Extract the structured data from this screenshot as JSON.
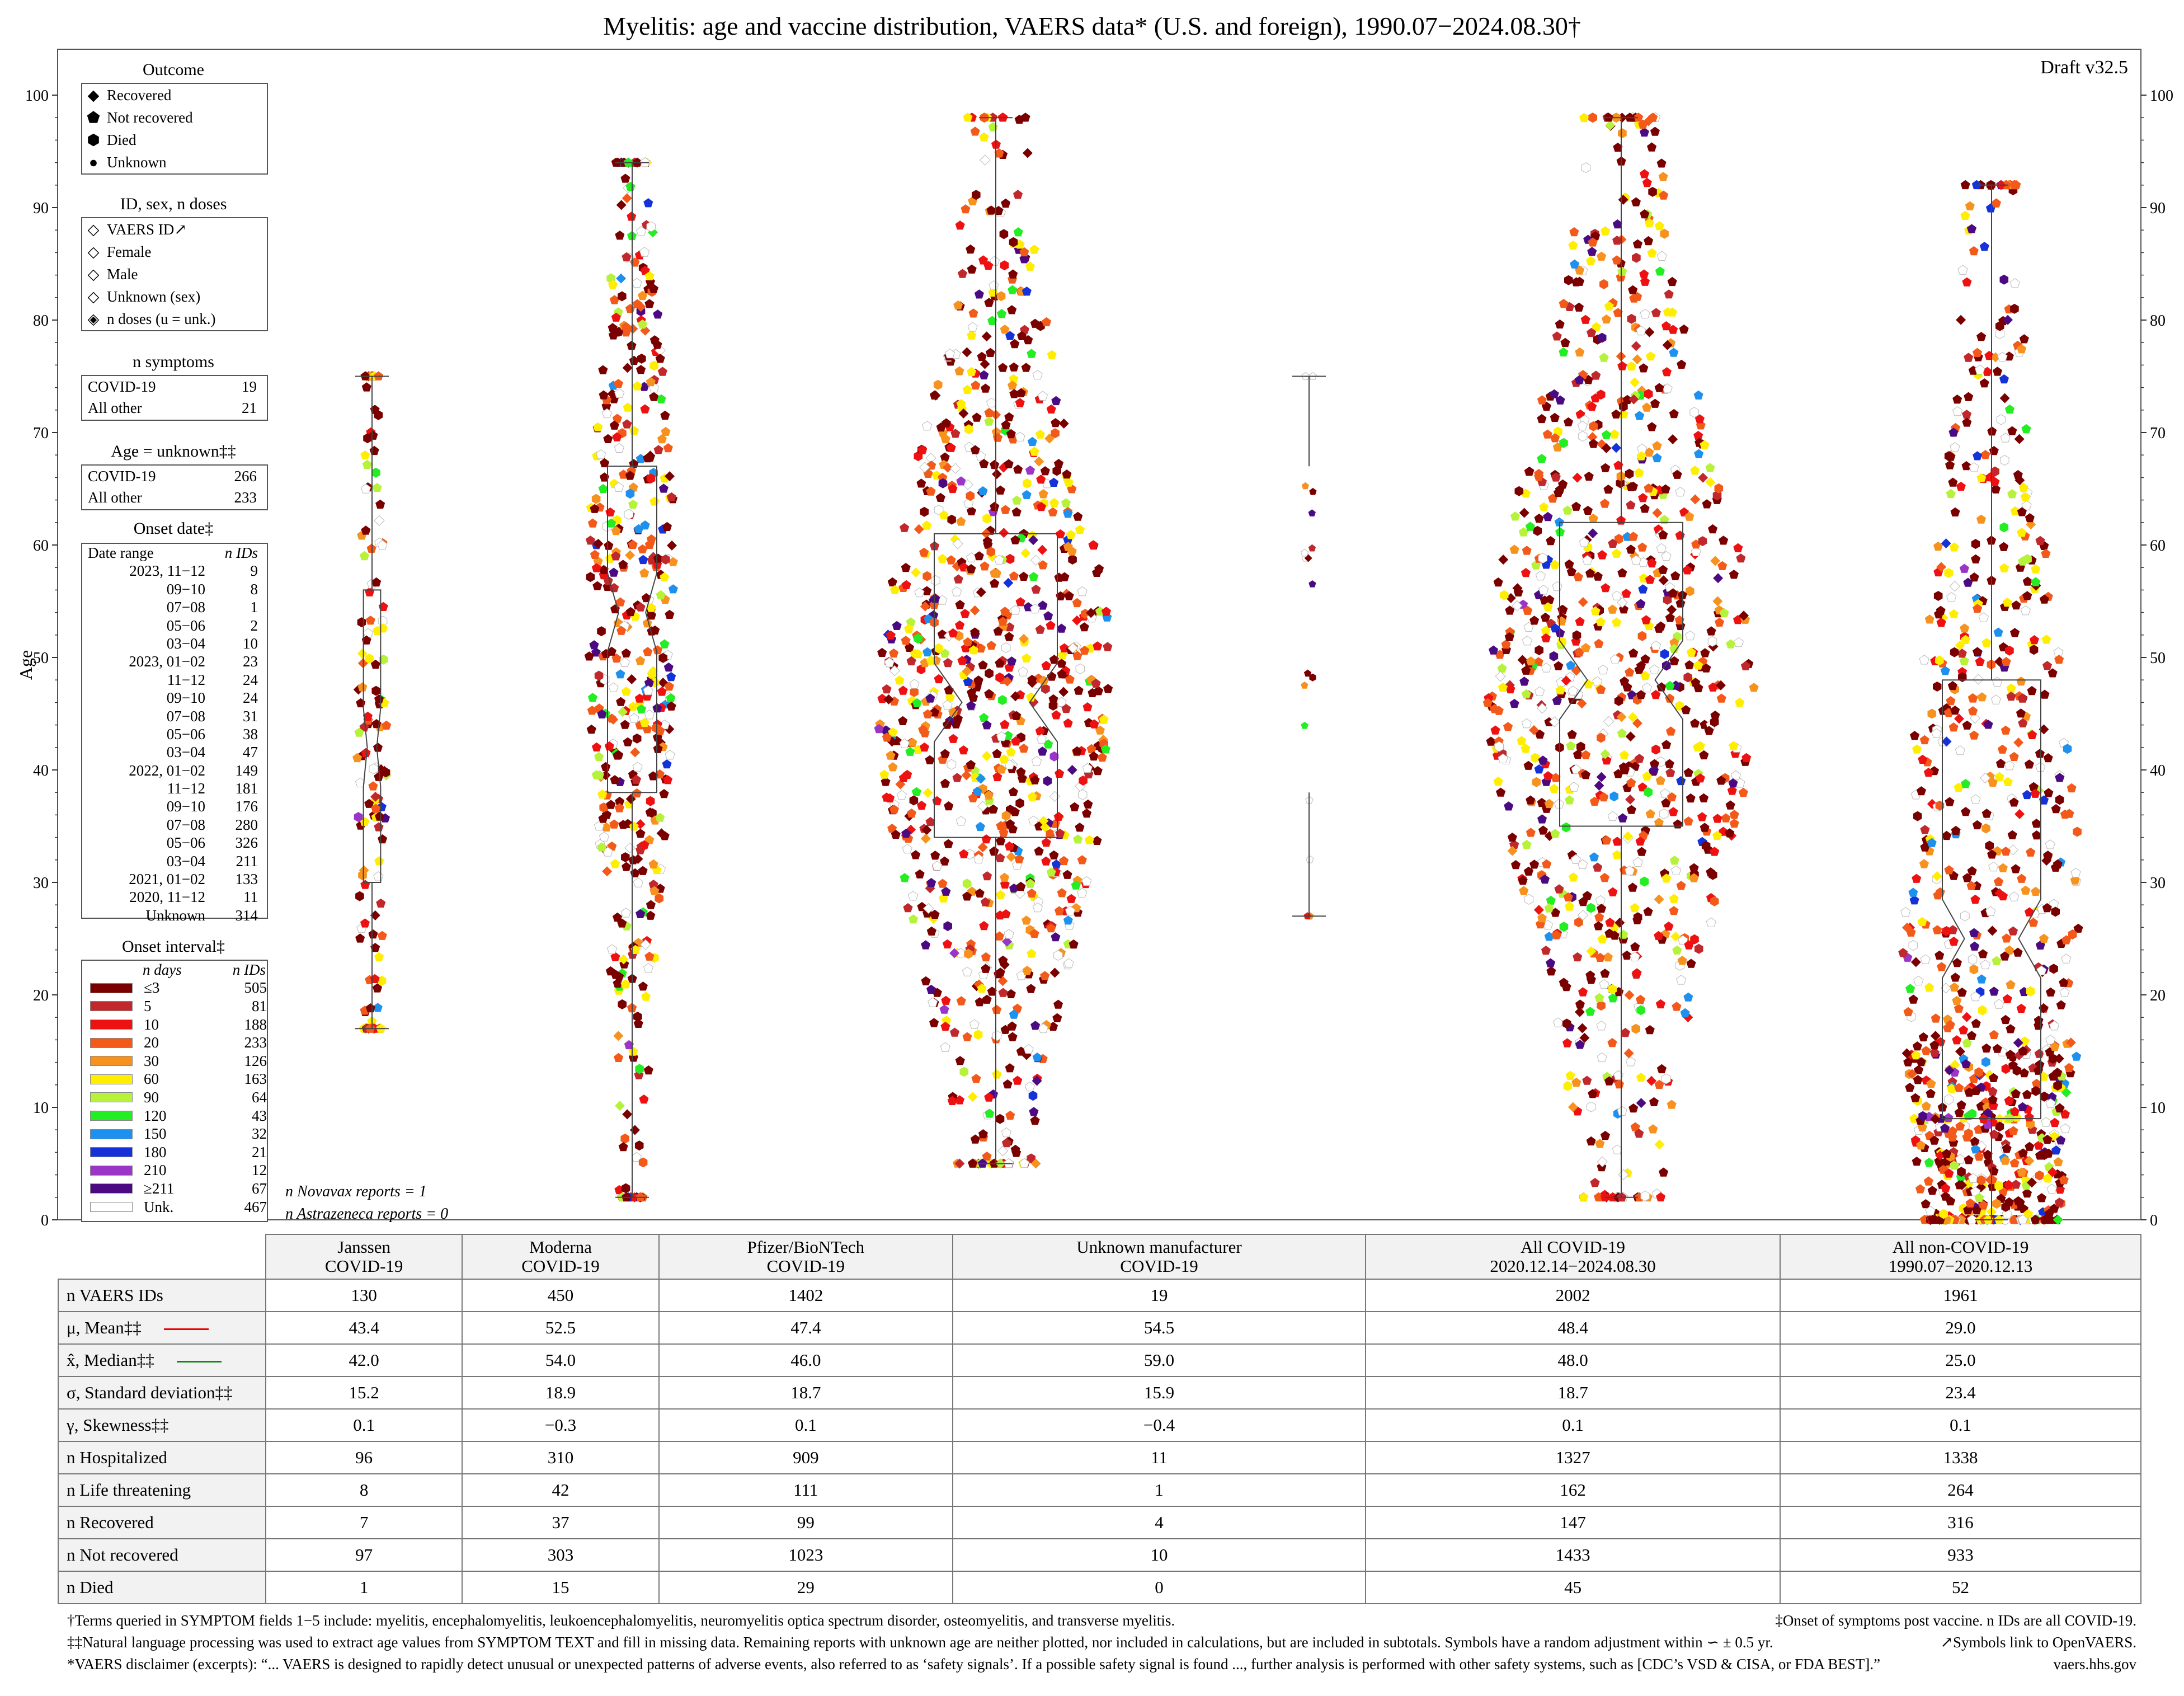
{
  "title": "Myelitis: age and vaccine distribution, VAERS data* (U.S. and foreign), 1990.07−2024.08.30†",
  "draft": "Draft v32.5",
  "legend": {
    "outcome": {
      "title": "Outcome",
      "items": [
        {
          "label": "Recovered",
          "icon": "diamond-icon"
        },
        {
          "label": "Not recovered",
          "icon": "pentagon-icon"
        },
        {
          "label": "Died",
          "icon": "hexagon-icon"
        },
        {
          "label": "Unknown",
          "icon": "circle-icon"
        }
      ]
    },
    "id_sex": {
      "title": "ID, sex, n doses",
      "items": [
        {
          "label": "VAERS ID↗"
        },
        {
          "label": "Female"
        },
        {
          "label": "Male"
        },
        {
          "label": "Unknown (sex)"
        },
        {
          "label": "n doses (u = unk.)"
        }
      ]
    },
    "n_symptoms": {
      "title": "n symptoms",
      "rows": [
        {
          "label": "COVID-19",
          "value": "19"
        },
        {
          "label": "All other",
          "value": "21"
        }
      ]
    },
    "age_unknown": {
      "title": "Age = unknown‡‡",
      "rows": [
        {
          "label": "COVID-19",
          "value": "266"
        },
        {
          "label": "All other",
          "value": "233"
        }
      ]
    },
    "onset_date": {
      "title": "Onset date‡",
      "header": {
        "range": "Date range",
        "n": "n IDs"
      },
      "rows": [
        {
          "range": "2023, 11−12",
          "n": "9"
        },
        {
          "range": "09−10",
          "n": "8"
        },
        {
          "range": "07−08",
          "n": "1"
        },
        {
          "range": "05−06",
          "n": "2"
        },
        {
          "range": "03−04",
          "n": "10"
        },
        {
          "range": "2023, 01−02",
          "n": "23"
        },
        {
          "range": "11−12",
          "n": "24"
        },
        {
          "range": "09−10",
          "n": "24"
        },
        {
          "range": "07−08",
          "n": "31"
        },
        {
          "range": "05−06",
          "n": "38"
        },
        {
          "range": "03−04",
          "n": "47"
        },
        {
          "range": "2022, 01−02",
          "n": "149"
        },
        {
          "range": "11−12",
          "n": "181"
        },
        {
          "range": "09−10",
          "n": "176"
        },
        {
          "range": "07−08",
          "n": "280"
        },
        {
          "range": "05−06",
          "n": "326"
        },
        {
          "range": "03−04",
          "n": "211"
        },
        {
          "range": "2021, 01−02",
          "n": "133"
        },
        {
          "range": "2020, 11−12",
          "n": "11"
        },
        {
          "range": "Unknown",
          "n": "314"
        }
      ]
    },
    "onset_interval": {
      "title": "Onset interval‡",
      "header": {
        "days": "n days",
        "n": "n IDs"
      },
      "rows": [
        {
          "days": "≤3",
          "n": "505",
          "color": "#7a0000"
        },
        {
          "days": "5",
          "n": "81",
          "color": "#c0282c"
        },
        {
          "days": "10",
          "n": "188",
          "color": "#ee1111"
        },
        {
          "days": "20",
          "n": "233",
          "color": "#f35a1a"
        },
        {
          "days": "30",
          "n": "126",
          "color": "#f7921e"
        },
        {
          "days": "60",
          "n": "163",
          "color": "#ffee00"
        },
        {
          "days": "90",
          "n": "64",
          "color": "#b6f23a"
        },
        {
          "days": "120",
          "n": "43",
          "color": "#22ee22"
        },
        {
          "days": "150",
          "n": "32",
          "color": "#1e90ee"
        },
        {
          "days": "180",
          "n": "21",
          "color": "#1432d8"
        },
        {
          "days": "210",
          "n": "12",
          "color": "#9b35c8"
        },
        {
          "days": "≥211",
          "n": "67",
          "color": "#4b0a82"
        },
        {
          "days": "Unk.",
          "n": "467",
          "color": "#ffffff"
        }
      ]
    }
  },
  "notes": {
    "novavax": "n Novavax reports = 1",
    "astrazeneca": "n Astrazeneca reports = 0"
  },
  "chart_data": {
    "type": "scatter",
    "subtype": "violin-swarm with notched box plots",
    "ylabel": "Age",
    "ylim": [
      0,
      100
    ],
    "yticks": [
      0,
      10,
      20,
      30,
      40,
      50,
      60,
      70,
      80,
      90,
      100
    ],
    "groups": [
      {
        "name": "Janssen COVID-19",
        "n": 130,
        "min": 17,
        "q1": 30,
        "median": 42,
        "q3": 56,
        "max": 75,
        "mean": 43.4
      },
      {
        "name": "Moderna COVID-19",
        "n": 450,
        "min": 2,
        "q1": 38,
        "median": 54,
        "q3": 67,
        "max": 94,
        "mean": 52.5
      },
      {
        "name": "Pfizer/BioNTech COVID-19",
        "n": 1402,
        "min": 5,
        "q1": 34,
        "median": 46,
        "q3": 61,
        "max": 98,
        "mean": 47.4
      },
      {
        "name": "Unknown manufacturer COVID-19",
        "n": 19,
        "min": 27,
        "q1": 38,
        "median": 59,
        "q3": 67,
        "max": 75,
        "mean": 54.5
      },
      {
        "name": "All COVID-19",
        "n": 2002,
        "min": 2,
        "q1": 35,
        "median": 48,
        "q3": 62,
        "max": 98,
        "mean": 48.4
      },
      {
        "name": "All non-COVID-19",
        "n": 1961,
        "min": 0,
        "q1": 9,
        "median": 25,
        "q3": 48,
        "max": 92,
        "mean": 29.0
      }
    ]
  },
  "table": {
    "columns": [
      {
        "line1": "Janssen",
        "line2": "COVID-19"
      },
      {
        "line1": "Moderna",
        "line2": "COVID-19"
      },
      {
        "line1": "Pfizer/BioNTech",
        "line2": "COVID-19"
      },
      {
        "line1": "Unknown manufacturer",
        "line2": "COVID-19"
      },
      {
        "line1": "All COVID-19",
        "line2": "2020.12.14−2024.08.30"
      },
      {
        "line1": "All non-COVID-19",
        "line2": "1990.07−2020.12.13"
      }
    ],
    "rows": [
      {
        "label": "n VAERS IDs",
        "values": [
          "130",
          "450",
          "1402",
          "19",
          "2002",
          "1961"
        ]
      },
      {
        "label": "μ, Mean‡‡",
        "line_color": "#ee0000",
        "values": [
          "43.4",
          "52.5",
          "47.4",
          "54.5",
          "48.4",
          "29.0"
        ]
      },
      {
        "label": "x̂, Median‡‡",
        "line_color": "#118811",
        "values": [
          "42.0",
          "54.0",
          "46.0",
          "59.0",
          "48.0",
          "25.0"
        ]
      },
      {
        "label": "σ, Standard deviation‡‡",
        "values": [
          "15.2",
          "18.9",
          "18.7",
          "15.9",
          "18.7",
          "23.4"
        ]
      },
      {
        "label": "γ, Skewness‡‡",
        "values": [
          "0.1",
          "−0.3",
          "0.1",
          "−0.4",
          "0.1",
          "0.1"
        ]
      },
      {
        "label": "n Hospitalized",
        "values": [
          "96",
          "310",
          "909",
          "11",
          "1327",
          "1338"
        ]
      },
      {
        "label": "n Life threatening",
        "values": [
          "8",
          "42",
          "111",
          "1",
          "162",
          "264"
        ]
      },
      {
        "label": "n Recovered",
        "values": [
          "7",
          "37",
          "99",
          "4",
          "147",
          "316"
        ]
      },
      {
        "label": "n Not recovered",
        "values": [
          "97",
          "303",
          "1023",
          "10",
          "1433",
          "933"
        ]
      },
      {
        "label": "n Died",
        "values": [
          "1",
          "15",
          "29",
          "0",
          "45",
          "52"
        ]
      }
    ]
  },
  "footnotes": {
    "terms": "†Terms queried in SYMPTOM fields 1−5 include: myelitis, encephalomyelitis, leukoencephalomyelitis, neuromyelitis optica spectrum disorder, osteomyelitis, and transverse myelitis.",
    "onset": "‡Onset of symptoms post vaccine. n IDs are all COVID-19.",
    "nlp": "‡‡Natural language processing was used to extract age values from SYMPTOM TEXT and fill in missing data. Remaining reports with unknown age are neither plotted, nor included in calculations, but are included in subtotals. Symbols have a random adjustment within ∽ ± 0.5 yr.",
    "symbols": "↗Symbols link to OpenVAERS.",
    "disclaimer": "*VAERS disclaimer (excerpts): “... VAERS is designed to rapidly detect unusual or unexpected patterns of adverse events, also referred to as ‘safety signals’. If a possible safety signal is found ..., further analysis is performed with other safety systems, such as [CDC’s VSD & CISA, or FDA BEST].”",
    "site": "vaers.hhs.gov"
  }
}
